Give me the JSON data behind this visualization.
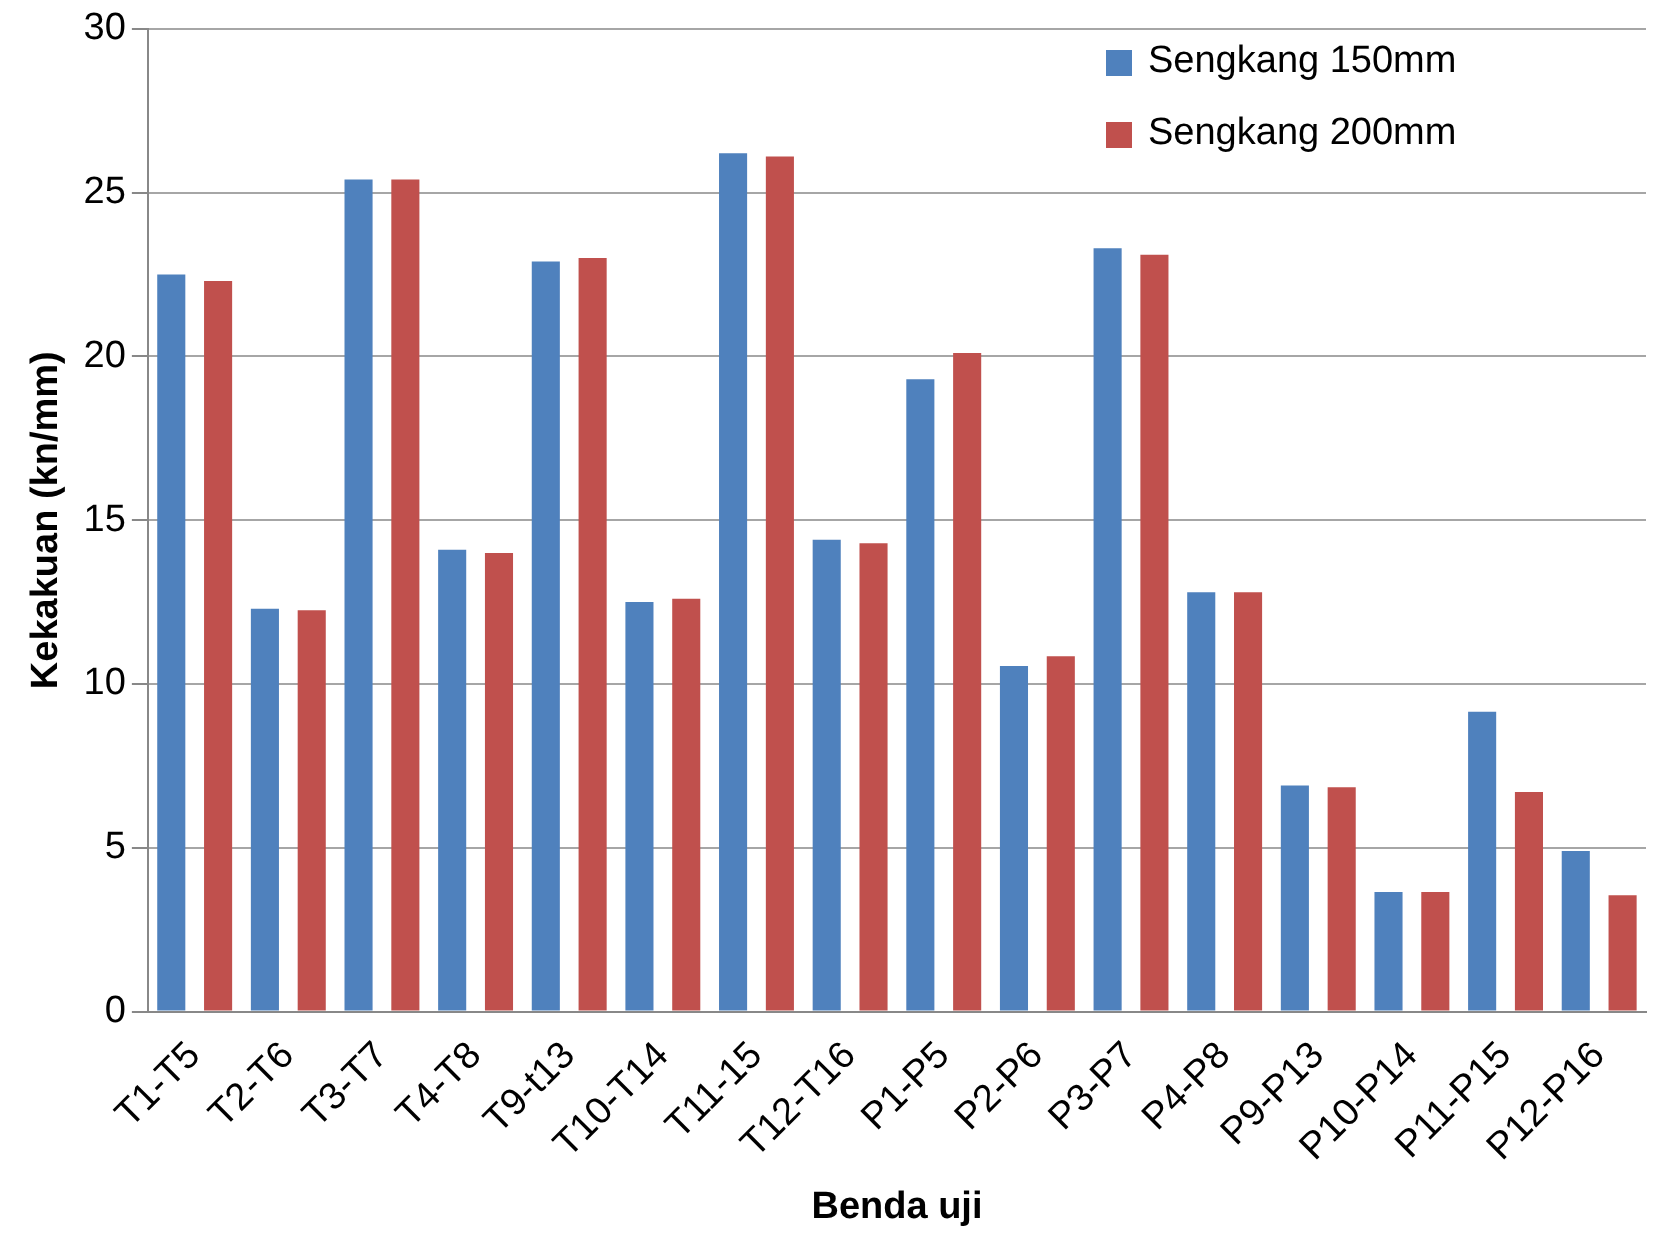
{
  "chart_data": {
    "type": "bar",
    "xlabel": "Benda uji",
    "ylabel": "Kekakuan (kn/mm)",
    "categories": [
      "T1-T5",
      "T2-T6",
      "T3-T7",
      "T4-T8",
      "T9-t13",
      "T10-T14",
      "T11-15",
      "T12-T16",
      "P1-P5",
      "P2-P6",
      "P3-P7",
      "P4-P8",
      "P9-P13",
      "P10-P14",
      "P11-P15",
      "P12-P16"
    ],
    "series": [
      {
        "name": "Sengkang 150mm",
        "color": "#4f81bd",
        "values": [
          22.5,
          12.3,
          25.4,
          14.1,
          22.9,
          12.5,
          26.2,
          14.4,
          19.3,
          10.55,
          23.3,
          12.8,
          6.9,
          3.65,
          9.15,
          4.9
        ]
      },
      {
        "name": "Sengkang 200mm",
        "color": "#c0504d",
        "values": [
          22.3,
          12.25,
          25.4,
          14.0,
          23.0,
          12.6,
          26.1,
          14.3,
          20.1,
          10.85,
          23.1,
          12.8,
          6.85,
          3.65,
          6.7,
          3.55
        ]
      }
    ],
    "ylim": [
      0,
      30
    ],
    "yticks": [
      0,
      5,
      10,
      15,
      20,
      25,
      30
    ],
    "grid": "y",
    "legend": "top right"
  }
}
